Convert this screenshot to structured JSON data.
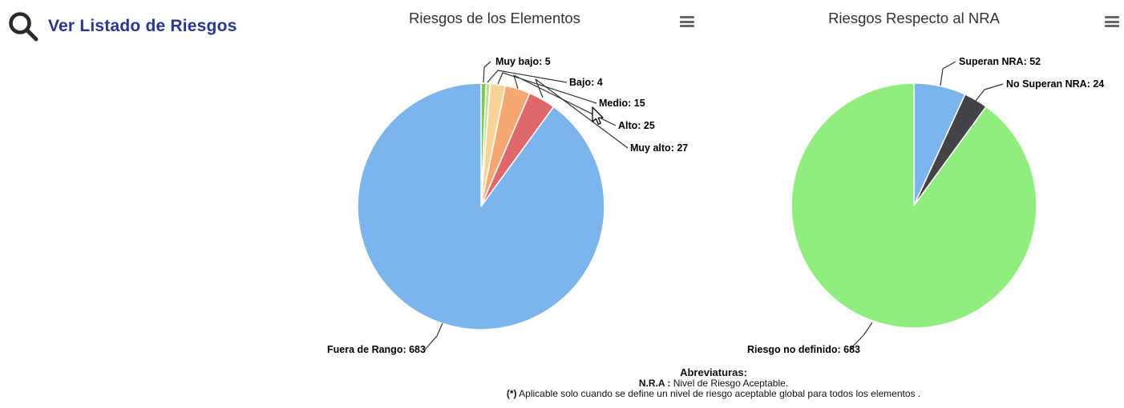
{
  "toolbar": {
    "link_label": "Ver Listado de Riesgos",
    "link_color": "#283593",
    "search_icon_color": "#2b2b2b"
  },
  "chart_data": [
    {
      "type": "pie",
      "title": "Riesgos de los Elementos",
      "legend": "none",
      "label_format": "{name}: {value}",
      "start_angle_deg": 0,
      "direction": "clockwise",
      "total": 759,
      "series": [
        {
          "name": "Muy bajo",
          "value": 5,
          "color": "#7DC855"
        },
        {
          "name": "Bajo",
          "value": 4,
          "color": "#BCE394"
        },
        {
          "name": "Medio",
          "value": 15,
          "color": "#F8D498"
        },
        {
          "name": "Alto",
          "value": 25,
          "color": "#F5A871"
        },
        {
          "name": "Muy alto",
          "value": 27,
          "color": "#E0676C"
        },
        {
          "name": "Fuera de Rango",
          "value": 683,
          "color": "#7CB5EC"
        }
      ]
    },
    {
      "type": "pie",
      "title": "Riesgos Respecto al NRA",
      "legend": "none",
      "label_format": "{name}: {value}",
      "start_angle_deg": 0,
      "direction": "clockwise",
      "total": 759,
      "series": [
        {
          "name": "Superan NRA",
          "value": 52,
          "color": "#7CB5EC"
        },
        {
          "name": "No Superan NRA",
          "value": 24,
          "color": "#434348"
        },
        {
          "name": "Riesgo no definido",
          "value": 683,
          "color": "#90ED7D"
        }
      ]
    }
  ],
  "ui": {
    "title_color": "#333333",
    "menu_icon": "hamburger-icon",
    "connector_color": "#333333"
  },
  "footer": {
    "heading": "Abreviaturas:",
    "line1_prefix": "N.R.A :",
    "line1_rest": " Nivel de Riesgo Aceptable.",
    "line2_prefix": "(*)",
    "line2_rest": " Aplicable solo cuando se define un nivel de riesgo aceptable global para todos los elementos ."
  }
}
